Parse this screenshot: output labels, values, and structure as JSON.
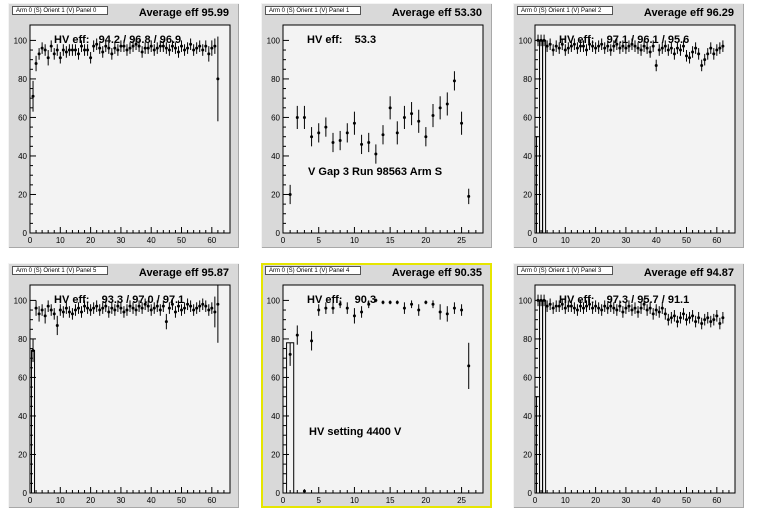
{
  "chart_data": [
    {
      "type": "scatter",
      "panel_title": "Arm 0 (S) Orient 1 (V) Panel 0",
      "average_label": "Average eff 95.99",
      "hv_label": "HV eff:   94.2 / 96.8 / 96.9",
      "annotation": "",
      "xlim": [
        0,
        66
      ],
      "ylim": [
        0,
        108
      ],
      "xticks": [
        0,
        10,
        20,
        30,
        40,
        50,
        60
      ],
      "yticks": [
        0,
        20,
        40,
        60,
        80,
        100
      ],
      "x": [
        1,
        2,
        3,
        4,
        5,
        6,
        7,
        8,
        9,
        10,
        11,
        12,
        13,
        14,
        15,
        16,
        17,
        18,
        19,
        20,
        21,
        22,
        23,
        24,
        25,
        26,
        27,
        28,
        29,
        30,
        31,
        32,
        33,
        34,
        35,
        36,
        37,
        38,
        39,
        40,
        41,
        42,
        43,
        44,
        45,
        46,
        47,
        48,
        49,
        50,
        51,
        52,
        53,
        54,
        55,
        56,
        57,
        58,
        59,
        60,
        61,
        62
      ],
      "y": [
        71,
        88,
        93,
        96,
        95,
        91,
        97,
        93,
        95,
        91,
        95,
        94,
        95,
        95,
        95,
        93,
        97,
        95,
        95,
        91,
        97,
        98,
        96,
        94,
        97,
        96,
        93,
        96,
        95,
        97,
        97,
        95,
        96,
        97,
        98,
        97,
        94,
        96,
        96,
        97,
        95,
        96,
        97,
        97,
        96,
        95,
        97,
        96,
        94,
        97,
        95,
        96,
        98,
        95,
        96,
        97,
        95,
        97,
        93,
        96,
        97,
        80
      ],
      "err": [
        8,
        4,
        3,
        3,
        3,
        4,
        3,
        3,
        3,
        3,
        3,
        3,
        3,
        3,
        3,
        3,
        3,
        3,
        3,
        3,
        3,
        3,
        3,
        3,
        3,
        3,
        3,
        3,
        3,
        3,
        3,
        3,
        3,
        3,
        3,
        3,
        3,
        3,
        3,
        3,
        3,
        3,
        3,
        3,
        3,
        3,
        3,
        3,
        3,
        3,
        3,
        3,
        3,
        3,
        3,
        3,
        3,
        3,
        4,
        4,
        4,
        22
      ],
      "hist": []
    },
    {
      "type": "scatter",
      "panel_title": "Arm 0 (S) Orient 1 (V) Panel 1",
      "average_label": "Average eff 53.30",
      "hv_label": "HV eff:    53.3",
      "annotation": "V Gap 3 Run 98563 Arm S",
      "xlim": [
        0,
        28
      ],
      "ylim": [
        0,
        108
      ],
      "xticks": [
        0,
        5,
        10,
        15,
        20,
        25
      ],
      "yticks": [
        0,
        20,
        40,
        60,
        80,
        100
      ],
      "x": [
        1,
        2,
        3,
        4,
        5,
        6,
        7,
        8,
        9,
        10,
        11,
        12,
        13,
        14,
        15,
        16,
        17,
        18,
        19,
        20,
        21,
        22,
        23,
        24,
        25,
        26
      ],
      "y": [
        20,
        60,
        60,
        50,
        52,
        55,
        47,
        48,
        52,
        57,
        46,
        47,
        41,
        51,
        65,
        52,
        60,
        62,
        58,
        50,
        61,
        65,
        67,
        79,
        57,
        19
      ],
      "err": [
        5,
        6,
        6,
        5,
        5,
        5,
        5,
        5,
        5,
        6,
        5,
        5,
        5,
        5,
        6,
        6,
        6,
        6,
        6,
        5,
        6,
        6,
        6,
        5,
        6,
        4
      ],
      "hist": []
    },
    {
      "type": "scatter",
      "panel_title": "Arm 0 (S) Orient 1 (V) Panel 2",
      "average_label": "Average eff 96.29",
      "hv_label": "HV eff:    97.1 / 96.1 / 95.6",
      "annotation": "",
      "xlim": [
        0,
        66
      ],
      "ylim": [
        0,
        108
      ],
      "xticks": [
        0,
        10,
        20,
        30,
        40,
        50,
        60
      ],
      "yticks": [
        0,
        20,
        40,
        60,
        80,
        100
      ],
      "x": [
        1,
        2,
        3,
        4,
        5,
        6,
        7,
        8,
        9,
        10,
        11,
        12,
        13,
        14,
        15,
        16,
        17,
        18,
        19,
        20,
        21,
        22,
        23,
        24,
        25,
        26,
        27,
        28,
        29,
        30,
        31,
        32,
        33,
        34,
        35,
        36,
        37,
        38,
        39,
        40,
        41,
        42,
        43,
        44,
        45,
        46,
        47,
        48,
        49,
        50,
        51,
        52,
        53,
        54,
        55,
        56,
        57,
        58,
        59,
        60,
        61,
        62
      ],
      "y": [
        100,
        100,
        100,
        97,
        98,
        95,
        97,
        96,
        98,
        95,
        96,
        97,
        98,
        96,
        97,
        97,
        95,
        98,
        97,
        96,
        97,
        98,
        96,
        97,
        95,
        97,
        98,
        96,
        97,
        96,
        97,
        98,
        97,
        96,
        95,
        97,
        96,
        94,
        97,
        87,
        95,
        96,
        97,
        95,
        96,
        93,
        96,
        95,
        97,
        92,
        91,
        94,
        96,
        93,
        87,
        90,
        93,
        96,
        93,
        95,
        96,
        97
      ],
      "err": [
        3,
        3,
        3,
        3,
        3,
        3,
        3,
        3,
        3,
        3,
        3,
        3,
        3,
        3,
        3,
        3,
        3,
        3,
        3,
        3,
        3,
        3,
        3,
        3,
        3,
        3,
        3,
        3,
        3,
        3,
        3,
        3,
        3,
        3,
        3,
        3,
        3,
        3,
        3,
        3,
        3,
        3,
        3,
        3,
        3,
        3,
        3,
        3,
        3,
        3,
        3,
        3,
        3,
        3,
        3,
        3,
        3,
        3,
        3,
        3,
        3,
        3
      ],
      "hist": [
        [
          1,
          50
        ],
        [
          2,
          100
        ],
        [
          3,
          100
        ]
      ]
    },
    {
      "type": "scatter",
      "panel_title": "Arm 0 (S) Orient 1 (V) Panel 5",
      "average_label": "Average eff 95.87",
      "hv_label": "HV eff:    93.3 / 97.0 / 97.1",
      "annotation": "",
      "xlim": [
        0,
        66
      ],
      "ylim": [
        0,
        108
      ],
      "xticks": [
        0,
        10,
        20,
        30,
        40,
        50,
        60
      ],
      "yticks": [
        0,
        20,
        40,
        60,
        80,
        100
      ],
      "x": [
        1,
        2,
        3,
        4,
        5,
        6,
        7,
        8,
        9,
        10,
        11,
        12,
        13,
        14,
        15,
        16,
        17,
        18,
        19,
        20,
        21,
        22,
        23,
        24,
        25,
        26,
        27,
        28,
        29,
        30,
        31,
        32,
        33,
        34,
        35,
        36,
        37,
        38,
        39,
        40,
        41,
        42,
        43,
        44,
        45,
        46,
        47,
        48,
        49,
        50,
        51,
        52,
        53,
        54,
        55,
        56,
        57,
        58,
        59,
        60,
        61,
        62
      ],
      "y": [
        74,
        96,
        93,
        95,
        92,
        97,
        95,
        93,
        87,
        95,
        94,
        96,
        94,
        93,
        95,
        96,
        94,
        97,
        96,
        95,
        96,
        97,
        95,
        96,
        97,
        94,
        96,
        95,
        97,
        96,
        94,
        95,
        97,
        96,
        95,
        97,
        96,
        98,
        97,
        95,
        96,
        97,
        95,
        97,
        89,
        96,
        98,
        94,
        97,
        95,
        96,
        98,
        97,
        95,
        96,
        97,
        98,
        97,
        95,
        96,
        94,
        98
      ],
      "err": [
        6,
        4,
        4,
        3,
        4,
        3,
        3,
        3,
        5,
        3,
        3,
        3,
        3,
        3,
        3,
        3,
        3,
        3,
        3,
        3,
        3,
        3,
        3,
        3,
        3,
        3,
        3,
        3,
        3,
        3,
        3,
        3,
        3,
        3,
        3,
        3,
        3,
        3,
        3,
        3,
        3,
        3,
        3,
        3,
        4,
        3,
        3,
        3,
        3,
        3,
        3,
        3,
        3,
        3,
        3,
        3,
        3,
        3,
        3,
        3,
        8,
        20
      ],
      "hist": [
        [
          1,
          74
        ]
      ]
    },
    {
      "type": "scatter",
      "panel_title": "Arm 0 (S) Orient 1 (V) Panel 4",
      "average_label": "Average eff 90.35",
      "hv_label": "HV eff:    90.3",
      "annotation": "HV setting 4400 V",
      "xlim": [
        0,
        28
      ],
      "ylim": [
        0,
        108
      ],
      "xticks": [
        0,
        5,
        10,
        15,
        20,
        25
      ],
      "yticks": [
        0,
        20,
        40,
        60,
        80,
        100
      ],
      "x": [
        1,
        2,
        3,
        4,
        5,
        6,
        7,
        8,
        9,
        10,
        11,
        12,
        13,
        14,
        15,
        16,
        17,
        18,
        19,
        20,
        21,
        22,
        23,
        24,
        25,
        26
      ],
      "y": [
        72,
        82,
        1,
        79,
        95,
        96,
        96,
        98,
        96,
        92,
        94,
        98,
        100,
        99,
        99,
        99,
        96,
        98,
        95,
        99,
        98,
        94,
        93,
        96,
        95,
        66
      ],
      "err": [
        6,
        5,
        1,
        5,
        3,
        3,
        3,
        2,
        3,
        4,
        3,
        2,
        1,
        1,
        1,
        1,
        3,
        2,
        3,
        1,
        2,
        4,
        4,
        3,
        3,
        12
      ],
      "hist": [
        [
          1,
          78
        ]
      ]
    },
    {
      "type": "scatter",
      "panel_title": "Arm 0 (S) Orient 1 (V) Panel 3",
      "average_label": "Average eff 94.87",
      "hv_label": "HV eff:    97.3 / 95.7 / 91.1",
      "annotation": "",
      "xlim": [
        0,
        66
      ],
      "ylim": [
        0,
        108
      ],
      "xticks": [
        0,
        10,
        20,
        30,
        40,
        50,
        60
      ],
      "yticks": [
        0,
        20,
        40,
        60,
        80,
        100
      ],
      "x": [
        1,
        2,
        3,
        4,
        5,
        6,
        7,
        8,
        9,
        10,
        11,
        12,
        13,
        14,
        15,
        16,
        17,
        18,
        19,
        20,
        21,
        22,
        23,
        24,
        25,
        26,
        27,
        28,
        29,
        30,
        31,
        32,
        33,
        34,
        35,
        36,
        37,
        38,
        39,
        40,
        41,
        42,
        43,
        44,
        45,
        46,
        47,
        48,
        49,
        50,
        51,
        52,
        53,
        54,
        55,
        56,
        57,
        58,
        59,
        60,
        61,
        62
      ],
      "y": [
        100,
        100,
        100,
        97,
        98,
        96,
        97,
        97,
        98,
        96,
        97,
        97,
        96,
        95,
        97,
        96,
        97,
        98,
        96,
        97,
        96,
        95,
        97,
        96,
        97,
        96,
        95,
        97,
        94,
        96,
        97,
        95,
        96,
        94,
        96,
        98,
        95,
        96,
        93,
        95,
        94,
        96,
        93,
        90,
        91,
        92,
        89,
        91,
        93,
        90,
        91,
        92,
        89,
        91,
        88,
        90,
        91,
        89,
        90,
        92,
        88,
        91
      ],
      "err": [
        3,
        3,
        3,
        3,
        3,
        3,
        3,
        3,
        3,
        3,
        3,
        3,
        3,
        3,
        3,
        3,
        3,
        3,
        3,
        3,
        3,
        3,
        3,
        3,
        3,
        3,
        3,
        3,
        3,
        3,
        3,
        3,
        3,
        3,
        3,
        3,
        3,
        3,
        3,
        3,
        3,
        3,
        3,
        3,
        3,
        3,
        3,
        3,
        3,
        3,
        3,
        3,
        3,
        3,
        3,
        3,
        3,
        3,
        3,
        3,
        3,
        3
      ],
      "hist": [
        [
          1,
          50
        ],
        [
          2,
          100
        ],
        [
          3,
          100
        ]
      ]
    }
  ]
}
